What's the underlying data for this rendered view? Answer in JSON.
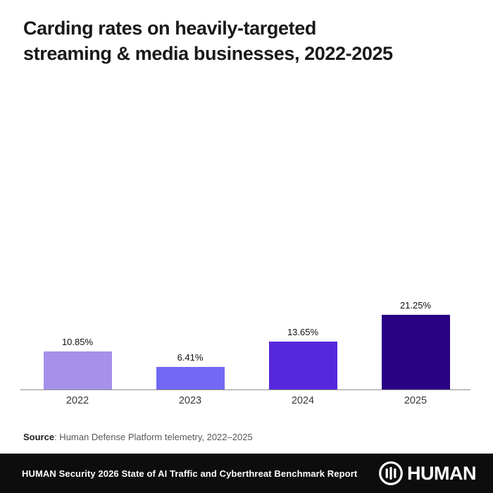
{
  "title": "Carding rates on heavily-targeted\nstreaming & media businesses, 2022-2025",
  "source": {
    "label": "Source",
    "text": ": Human Defense Platform telemetry, 2022–2025"
  },
  "footer": {
    "report": "HUMAN Security 2026 State of AI Traffic and Cyberthreat Benchmark Report",
    "logo_text": "HUMAN",
    "bg_color": "#0d0d0d"
  },
  "chart_data": {
    "type": "bar",
    "title": "Carding rates on heavily-targeted streaming & media businesses, 2022-2025",
    "categories": [
      "2022",
      "2023",
      "2024",
      "2025"
    ],
    "values": [
      10.85,
      6.41,
      13.65,
      21.25
    ],
    "labels": [
      "10.85%",
      "6.41%",
      "13.65%",
      "21.25%"
    ],
    "bar_colors": [
      "#a591e9",
      "#7268f5",
      "#5628dd",
      "#2a0084"
    ],
    "xlabel": "",
    "ylabel": "",
    "ylim": [
      0,
      22
    ],
    "grid": false,
    "legend": false,
    "value_labels": true,
    "axis_line_color": "#8f8f8f"
  }
}
